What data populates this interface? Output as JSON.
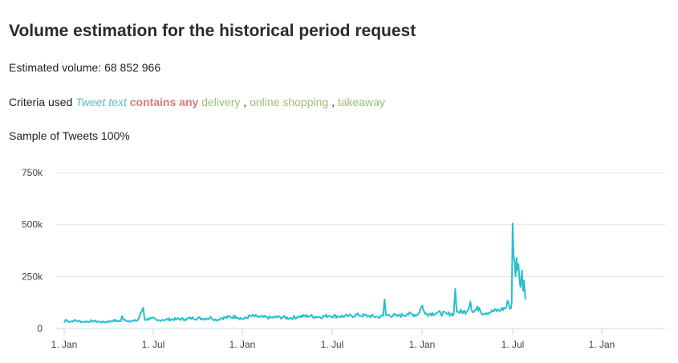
{
  "header": {
    "title": "Volume estimation for the historical period request"
  },
  "summary": {
    "volume_label": "Estimated volume:",
    "volume_value": "68 852 966",
    "criteria_label": "Criteria used",
    "criteria_field": "Tweet text",
    "criteria_operator": "contains any",
    "keywords": [
      "delivery",
      "online shopping",
      "takeaway"
    ],
    "sample_label": "Sample of Tweets",
    "sample_value": "100%"
  },
  "colors": {
    "line": "#26c0cf",
    "field": "#5bb8d4",
    "operator": "#d47b7b",
    "keyword": "#9cbe77",
    "grid": "#e6e6e6"
  },
  "chart_data": {
    "type": "line",
    "title": "",
    "xlabel": "",
    "ylabel": "",
    "ylim": [
      0,
      750000
    ],
    "y_ticks": [
      0,
      250000,
      500000,
      750000
    ],
    "y_tick_labels": [
      "0",
      "250k",
      "500k",
      "750k"
    ],
    "x_tick_labels": [
      "1. Jan",
      "1. Jul",
      "1. Jan",
      "1. Jul",
      "1. Jan",
      "1. Jul",
      "1. Jan"
    ],
    "grid": true,
    "legend": "none",
    "series": [
      {
        "values": [
          [
            0,
            28000
          ],
          [
            3,
            42000
          ],
          [
            10,
            33000
          ],
          [
            20,
            38000
          ],
          [
            40,
            32000
          ],
          [
            60,
            36000
          ],
          [
            80,
            30000
          ],
          [
            100,
            38000
          ],
          [
            115,
            35000
          ],
          [
            118,
            60000
          ],
          [
            121,
            40000
          ],
          [
            140,
            35000
          ],
          [
            150,
            40000
          ],
          [
            161,
            100000
          ],
          [
            164,
            42000
          ],
          [
            178,
            50000
          ],
          [
            190,
            38000
          ],
          [
            200,
            42000
          ],
          [
            230,
            45000
          ],
          [
            247,
            45000
          ],
          [
            260,
            50000
          ],
          [
            290,
            48000
          ],
          [
            300,
            52000
          ],
          [
            310,
            40000
          ],
          [
            320,
            50000
          ],
          [
            350,
            58000
          ],
          [
            365,
            45000
          ],
          [
            380,
            60000
          ],
          [
            400,
            55000
          ],
          [
            420,
            52000
          ],
          [
            440,
            55000
          ],
          [
            460,
            50000
          ],
          [
            480,
            58000
          ],
          [
            500,
            60000
          ],
          [
            520,
            55000
          ],
          [
            540,
            62000
          ],
          [
            560,
            58000
          ],
          [
            580,
            60000
          ],
          [
            600,
            65000
          ],
          [
            620,
            60000
          ],
          [
            640,
            55000
          ],
          [
            650,
            60000
          ],
          [
            653,
            140000
          ],
          [
            656,
            65000
          ],
          [
            680,
            60000
          ],
          [
            700,
            70000
          ],
          [
            720,
            65000
          ],
          [
            730,
            110000
          ],
          [
            735,
            70000
          ],
          [
            760,
            75000
          ],
          [
            780,
            70000
          ],
          [
            794,
            70000
          ],
          [
            797,
            190000
          ],
          [
            800,
            80000
          ],
          [
            820,
            80000
          ],
          [
            828,
            130000
          ],
          [
            832,
            80000
          ],
          [
            846,
            100000
          ],
          [
            850,
            75000
          ],
          [
            870,
            80000
          ],
          [
            890,
            90000
          ],
          [
            900,
            100000
          ],
          [
            905,
            130000
          ],
          [
            908,
            95000
          ],
          [
            912,
            120000
          ],
          [
            913,
            300000
          ],
          [
            914,
            505000
          ],
          [
            916,
            350000
          ],
          [
            918,
            320000
          ],
          [
            920,
            250000
          ],
          [
            922,
            340000
          ],
          [
            924,
            280000
          ],
          [
            926,
            310000
          ],
          [
            928,
            230000
          ],
          [
            930,
            200000
          ],
          [
            933,
            280000
          ],
          [
            935,
            180000
          ],
          [
            937,
            230000
          ],
          [
            938,
            200000
          ],
          [
            940,
            140000
          ]
        ],
        "x_unit": "days since first 1. Jan tick"
      }
    ]
  }
}
